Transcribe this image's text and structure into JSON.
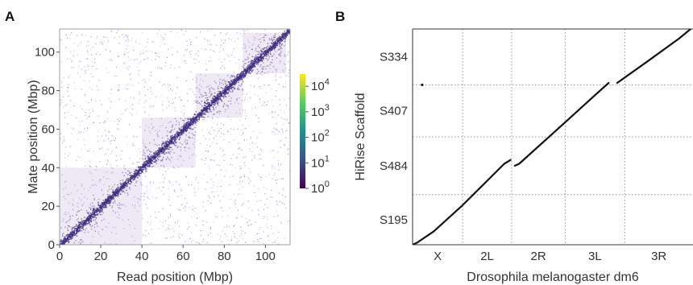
{
  "chart_data": [
    {
      "panel": "A",
      "type": "heatmap",
      "xlabel": "Read position (Mbp)",
      "ylabel": "Mate position (Mbp)",
      "xlim": [
        0,
        112
      ],
      "ylim": [
        0,
        112
      ],
      "x_ticks": [
        0,
        20,
        40,
        60,
        80,
        100
      ],
      "y_ticks": [
        0,
        20,
        40,
        60,
        80,
        100
      ],
      "block_boundaries_mbp": [
        0,
        40,
        66,
        89,
        110
      ],
      "colorbar": {
        "scale": "log",
        "range": [
          1,
          30000
        ],
        "tick_labels": [
          {
            "base": "10",
            "exp": "4"
          },
          {
            "base": "10",
            "exp": "3"
          },
          {
            "base": "10",
            "exp": "2"
          },
          {
            "base": "10",
            "exp": "1"
          },
          {
            "base": "10",
            "exp": "0"
          }
        ],
        "tick_values": [
          10000,
          1000,
          100,
          10,
          1
        ],
        "colors": [
          "#440154",
          "#3b528b",
          "#21918c",
          "#5ec962",
          "#fde725"
        ]
      }
    },
    {
      "panel": "B",
      "type": "line",
      "xlabel": "Drosophila melanogaster dm6",
      "ylabel": "HiRise Scaffold",
      "x_categories": [
        "X",
        "2L",
        "2R",
        "3L",
        "3R"
      ],
      "x_bounds": [
        0,
        23.5,
        46.5,
        71.6,
        99.6,
        131.6
      ],
      "y_categories": [
        "S195",
        "S484",
        "S407",
        "S334"
      ],
      "y_bounds": [
        0,
        26,
        56,
        83,
        112
      ],
      "segments": [
        {
          "x": [
            0,
            2,
            10,
            23,
            33,
            43,
            46
          ],
          "y": [
            0,
            1,
            7,
            20,
            31,
            42,
            44
          ]
        },
        {
          "x": [
            48,
            50,
            71,
            84,
            92
          ],
          "y": [
            41,
            42,
            63,
            76,
            84
          ]
        },
        {
          "x": [
            96,
            110,
            125,
            131.6
          ],
          "y": [
            84,
            95,
            107,
            113
          ]
        }
      ],
      "points": [
        {
          "x": 4.5,
          "y": 83
        }
      ]
    }
  ],
  "panels": {
    "a_letter": "A",
    "b_letter": "B"
  }
}
